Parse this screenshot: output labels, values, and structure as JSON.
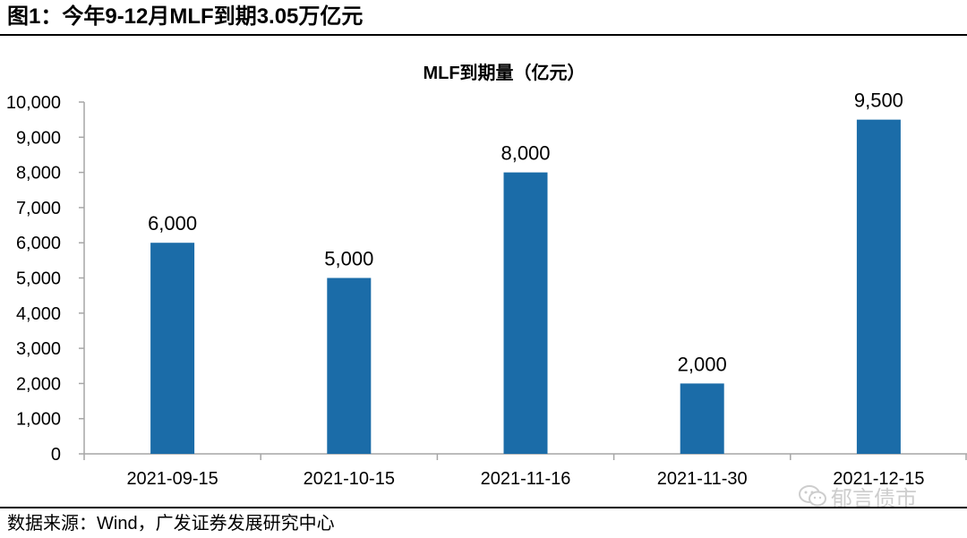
{
  "figure": {
    "title": "图1：今年9-12月MLF到期3.05万亿元",
    "source": "数据来源：Wind，广发证券发展研究中心",
    "watermark": "郁言债市"
  },
  "colors": {
    "bar": "#1b6ca8",
    "axis": "#a6a6a6",
    "text": "#000000"
  },
  "chart_data": {
    "type": "bar",
    "title": "MLF到期量（亿元）",
    "xlabel": "",
    "ylabel": "",
    "categories": [
      "2021-09-15",
      "2021-10-15",
      "2021-11-16",
      "2021-11-30",
      "2021-12-15"
    ],
    "values": [
      6000,
      5000,
      8000,
      2000,
      9500
    ],
    "value_labels": [
      "6,000",
      "5,000",
      "8,000",
      "2,000",
      "9,500"
    ],
    "ylim": [
      0,
      10000
    ],
    "yticks": [
      0,
      1000,
      2000,
      3000,
      4000,
      5000,
      6000,
      7000,
      8000,
      9000,
      10000
    ],
    "ytick_labels": [
      "0",
      "1,000",
      "2,000",
      "3,000",
      "4,000",
      "5,000",
      "6,000",
      "7,000",
      "8,000",
      "9,000",
      "10,000"
    ],
    "grid": false,
    "legend": "none"
  }
}
